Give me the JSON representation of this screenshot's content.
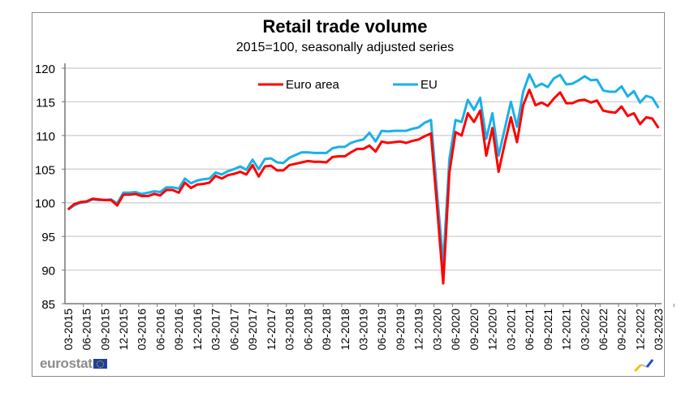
{
  "chart_data": {
    "type": "line",
    "title": "Retail trade volume",
    "subtitle": "2015=100, seasonally adjusted series",
    "xlabel": "",
    "ylabel": "",
    "ylim": [
      85,
      120
    ],
    "yticks": [
      85,
      90,
      95,
      100,
      105,
      110,
      115,
      120
    ],
    "grid": true,
    "legend_position": "top-center",
    "x_start": "03-2015",
    "x_end": "03-2023",
    "xtick_labels": [
      "03-2015",
      "06-2015",
      "09-2015",
      "12-2015",
      "03-2016",
      "06-2016",
      "09-2016",
      "12-2016",
      "03-2017",
      "06-2017",
      "09-2017",
      "12-2017",
      "03-2018",
      "06-2018",
      "09-2018",
      "12-2018",
      "03-2019",
      "06-2019",
      "09-2019",
      "12-2019",
      "03-2020",
      "06-2020",
      "09-2020",
      "12-2020",
      "03-2021",
      "06-2021",
      "09-2021",
      "12-2021",
      "03-2022",
      "06-2022",
      "09-2022",
      "12-2022",
      "03-2023"
    ],
    "series": [
      {
        "name": "Euro area",
        "color": "#ff0000",
        "values": [
          99.0,
          99.8,
          100.1,
          100.2,
          100.6,
          100.5,
          100.4,
          100.4,
          99.6,
          101.2,
          101.2,
          101.3,
          101.0,
          101.0,
          101.3,
          101.1,
          101.9,
          101.9,
          101.5,
          103.0,
          102.2,
          102.7,
          102.8,
          103.0,
          104.0,
          103.6,
          104.1,
          104.3,
          104.6,
          104.2,
          105.6,
          103.9,
          105.4,
          105.5,
          104.8,
          104.8,
          105.6,
          105.8,
          106.0,
          106.2,
          106.1,
          106.1,
          106.0,
          106.8,
          106.9,
          106.9,
          107.5,
          108.0,
          108.0,
          108.5,
          107.6,
          109.1,
          108.9,
          109.0,
          109.1,
          108.9,
          109.2,
          109.4,
          109.9,
          110.3,
          99.5,
          88.0,
          104.5,
          110.5,
          110.0,
          113.3,
          112.0,
          113.7,
          107.0,
          111.1,
          104.6,
          108.8,
          112.7,
          109.0,
          114.5,
          116.8,
          114.5,
          114.9,
          114.4,
          115.5,
          116.4,
          114.8,
          114.8,
          115.2,
          115.3,
          114.9,
          115.2,
          113.7,
          113.5,
          113.4,
          114.3,
          112.9,
          113.3,
          111.7,
          112.7,
          112.5,
          111.1
        ]
      },
      {
        "name": "EU",
        "color": "#1ab0ea",
        "values": [
          99.0,
          99.6,
          100.0,
          100.1,
          100.5,
          100.4,
          100.4,
          100.5,
          99.9,
          101.5,
          101.5,
          101.6,
          101.3,
          101.5,
          101.7,
          101.6,
          102.3,
          102.3,
          102.1,
          103.6,
          102.9,
          103.3,
          103.5,
          103.6,
          104.5,
          104.2,
          104.7,
          105.0,
          105.4,
          104.9,
          106.4,
          105.0,
          106.5,
          106.6,
          106.0,
          105.9,
          106.7,
          107.1,
          107.5,
          107.5,
          107.4,
          107.4,
          107.4,
          108.1,
          108.3,
          108.3,
          108.9,
          109.2,
          109.4,
          110.4,
          109.1,
          110.7,
          110.6,
          110.7,
          110.7,
          110.7,
          111.0,
          111.2,
          111.9,
          112.3,
          101.5,
          91.0,
          106.5,
          112.3,
          112.0,
          115.3,
          113.8,
          115.6,
          109.5,
          113.3,
          107.0,
          111.0,
          115.0,
          111.3,
          116.5,
          119.1,
          117.2,
          117.7,
          117.2,
          118.5,
          119.0,
          117.6,
          117.7,
          118.2,
          118.8,
          118.2,
          118.3,
          116.7,
          116.5,
          116.5,
          117.3,
          115.8,
          116.6,
          114.9,
          115.9,
          115.6,
          114.1
        ]
      }
    ]
  },
  "branding": {
    "logo_text": "eurostat"
  }
}
